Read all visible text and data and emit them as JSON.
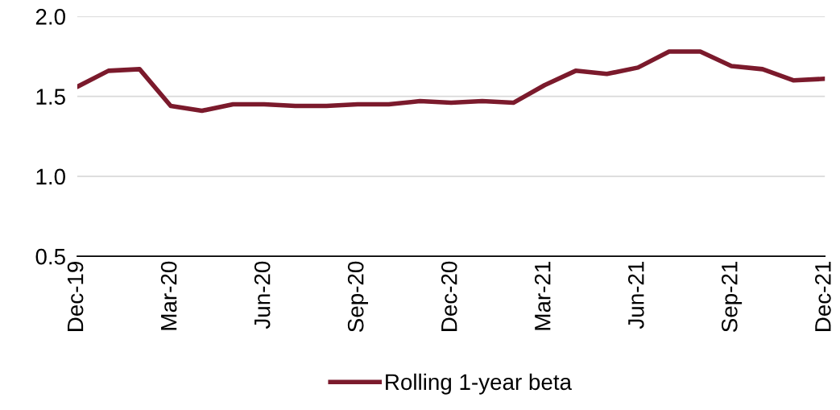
{
  "chart_data": {
    "type": "line",
    "categories": [
      "Dec-19",
      null,
      null,
      "Mar-20",
      null,
      null,
      "Jun-20",
      null,
      null,
      "Sep-20",
      null,
      null,
      "Dec-20",
      null,
      null,
      "Mar-21",
      null,
      null,
      "Jun-21",
      null,
      null,
      "Sep-21",
      null,
      null,
      "Dec-21"
    ],
    "series": [
      {
        "name": "Rolling 1-year beta",
        "color": "#7b1a2c",
        "values": [
          1.56,
          1.66,
          1.67,
          1.44,
          1.41,
          1.45,
          1.45,
          1.44,
          1.44,
          1.45,
          1.45,
          1.47,
          1.46,
          1.47,
          1.46,
          1.57,
          1.66,
          1.64,
          1.68,
          1.78,
          1.78,
          1.69,
          1.67,
          1.6,
          1.61
        ]
      }
    ],
    "ylim": [
      0.5,
      2.0
    ],
    "yticks": [
      {
        "value": 0.5,
        "label": "0.5"
      },
      {
        "value": 1.0,
        "label": "1.0"
      },
      {
        "value": 1.5,
        "label": "1.5"
      },
      {
        "value": 2.0,
        "label": "2.0"
      }
    ],
    "grid": "y",
    "legend": "bottom",
    "marker": "none",
    "line_style": "solid"
  }
}
